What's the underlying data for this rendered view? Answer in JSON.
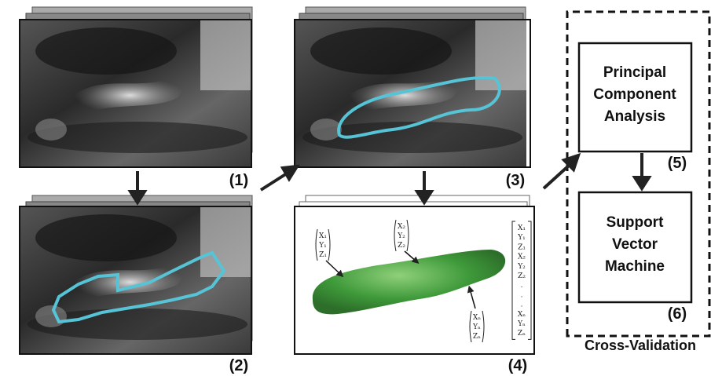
{
  "steps": [
    {
      "label": "(1)"
    },
    {
      "label": "(2)"
    },
    {
      "label": "(3)"
    },
    {
      "label": "(4)"
    },
    {
      "label": "(5)",
      "box": [
        "Principal",
        "Component",
        "Analysis"
      ]
    },
    {
      "label": "(6)",
      "box": [
        "Support",
        "Vector",
        "Machine"
      ]
    }
  ],
  "cross_validation": "Cross-Validation",
  "point_vectors": [
    [
      "X₁",
      "Y₁",
      "Z₁"
    ],
    [
      "X₂",
      "Y₂",
      "Z₂"
    ],
    [
      "Xₙ",
      "Yₙ",
      "Zₙ"
    ]
  ],
  "feature_vector": [
    "X₁",
    "Y₁",
    "Z₁",
    "X₂",
    "Y₂",
    "Z₂",
    ".",
    ".",
    ".",
    "Xₙ",
    "Yₙ",
    "Zₙ"
  ]
}
